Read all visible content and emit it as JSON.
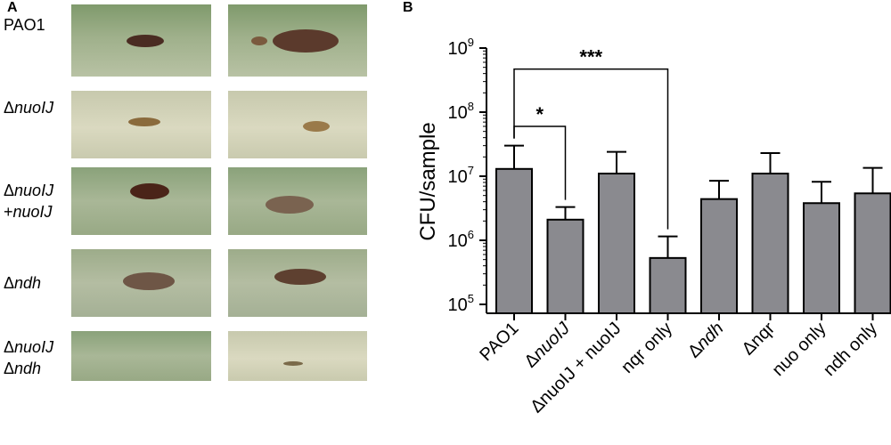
{
  "panel_a": {
    "letter": "A",
    "rows": [
      {
        "label": "PAO1",
        "label_italic": ""
      },
      {
        "label": "Δ",
        "label_italic": "nuoIJ"
      },
      {
        "label": "Δ",
        "label_italic": "nuoIJ",
        "label2": "+",
        "label2_italic": "nuoIJ"
      },
      {
        "label": "Δ",
        "label_italic": "ndh"
      },
      {
        "label": "Δ",
        "label_italic": "nuoIJ",
        "label2": "Δ",
        "label2_italic": "ndh"
      }
    ]
  },
  "panel_b": {
    "letter": "B"
  },
  "chart_data": {
    "type": "bar",
    "ylabel": "CFU/sample",
    "yscale": "log",
    "ylim": [
      100000,
      1000000000
    ],
    "yticks": [
      {
        "base": "10",
        "exp": "5"
      },
      {
        "base": "10",
        "exp": "6"
      },
      {
        "base": "10",
        "exp": "7"
      },
      {
        "base": "10",
        "exp": "8"
      },
      {
        "base": "10",
        "exp": "9"
      }
    ],
    "categories": [
      {
        "prefix": "",
        "italic": "",
        "rest": "PAO1"
      },
      {
        "prefix": "Δ",
        "italic": "nuoIJ",
        "rest": ""
      },
      {
        "prefix": "ΔnuoIJ + nuoIJ",
        "italic": "",
        "rest": ""
      },
      {
        "prefix": "nqr only",
        "italic": "",
        "rest": ""
      },
      {
        "prefix": "Δ",
        "italic": "ndh",
        "rest": ""
      },
      {
        "prefix": "Δnqr",
        "italic": "",
        "rest": ""
      },
      {
        "prefix": "nuo only",
        "italic": "",
        "rest": ""
      },
      {
        "prefix": "ndh only",
        "italic": "",
        "rest": ""
      }
    ],
    "values": [
      13000000,
      2100000,
      11000000,
      530000,
      4400000,
      11000000,
      3800000,
      5400000
    ],
    "error_upper": [
      30000000,
      3300000,
      24000000,
      1150000,
      8500000,
      23000000,
      8200000,
      13500000
    ],
    "bar_color": "#8a8a8f",
    "significance": [
      {
        "from": 0,
        "to": 1,
        "label": "*",
        "y": 60000000
      },
      {
        "from": 0,
        "to": 3,
        "label": "***",
        "y": 470000000
      }
    ],
    "grid": false
  }
}
